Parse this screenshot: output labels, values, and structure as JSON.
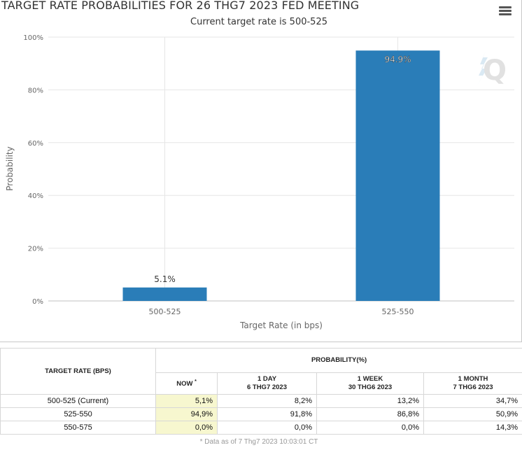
{
  "chart_data": {
    "type": "bar",
    "title": "TARGET RATE PROBABILITIES FOR 26 THG7 2023 FED MEETING",
    "subtitle": "Current target rate is 500-525",
    "xlabel": "Target Rate (in bps)",
    "ylabel": "Probability",
    "categories": [
      "500-525",
      "525-550"
    ],
    "values": [
      5.1,
      94.9
    ],
    "data_labels": [
      "5.1%",
      "94.9%"
    ],
    "ylim": [
      0,
      100
    ],
    "yticks": [
      "0%",
      "20%",
      "40%",
      "60%",
      "80%",
      "100%"
    ],
    "grid": true,
    "bar_color": "#2a7db8"
  },
  "menu_icon": "hamburger-menu-icon",
  "watermark_icon": "q-logo-icon",
  "table": {
    "rate_header": "TARGET RATE (BPS)",
    "prob_header": "PROBABILITY(%)",
    "columns": [
      {
        "line1": "NOW",
        "line2": ""
      },
      {
        "line1": "1 DAY",
        "line2": "6 THG7 2023"
      },
      {
        "line1": "1 WEEK",
        "line2": "30 THG6 2023"
      },
      {
        "line1": "1 MONTH",
        "line2": "7 THG6 2023"
      }
    ],
    "now_marker": "*",
    "rows": [
      {
        "rate": "500-525 (Current)",
        "values": [
          "5,1%",
          "8,2%",
          "13,2%",
          "34,7%"
        ]
      },
      {
        "rate": "525-550",
        "values": [
          "94,9%",
          "91,8%",
          "86,8%",
          "50,9%"
        ]
      },
      {
        "rate": "550-575",
        "values": [
          "0,0%",
          "0,0%",
          "0,0%",
          "14,3%"
        ]
      }
    ]
  },
  "footnote": "* Data as of 7 Thg7 2023 10:03:01 CT"
}
